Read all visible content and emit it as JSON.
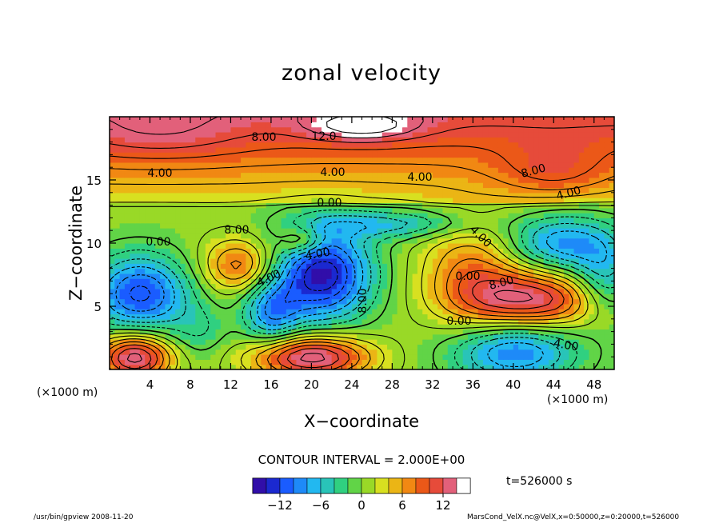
{
  "title": "zonal velocity",
  "xlabel": "X−coordinate",
  "ylabel": "Z−coordinate",
  "x_unit_left": "(×1000 m)",
  "x_unit_right": "(×1000 m)",
  "contour_interval": "CONTOUR INTERVAL = 2.000E+00",
  "time_info": "t=526000 s",
  "footer_left": "/usr/bin/gpview  2008-11-20",
  "footer_right": "MarsCond_VelX.nc@VelX,x=0:50000,z=0:20000,t=526000",
  "chart_data": {
    "type": "heatmap",
    "title": "zonal velocity",
    "xlabel": "X−coordinate",
    "ylabel": "Z−coordinate",
    "xlim": [
      0,
      50
    ],
    "ylim": [
      0,
      20
    ],
    "x_ticks": [
      4,
      8,
      12,
      16,
      20,
      24,
      28,
      32,
      36,
      40,
      44,
      48
    ],
    "y_ticks": [
      5,
      10,
      15
    ],
    "colorbar": {
      "range": [
        -16,
        16
      ],
      "ticks": [
        -12,
        -6,
        0,
        6,
        12
      ],
      "interval": 2.0
    },
    "contour_labels": [
      "8.00",
      "12.0",
      "4.00",
      "4.00",
      "4.00",
      "8.00",
      "4.00",
      "0.00",
      "8.00",
      "0.00",
      "4.00",
      "4.00",
      "4.00",
      "8.00",
      "0.00",
      "8.00",
      "0.00",
      "4.00"
    ],
    "features": [
      {
        "x": 3,
        "z": 6,
        "value": -10
      },
      {
        "x": 21,
        "z": 7.5,
        "value": -14
      },
      {
        "x": 16,
        "z": 5,
        "value": -10
      },
      {
        "x": 42,
        "z": 5.5,
        "value": 12
      },
      {
        "x": 13,
        "z": 8.5,
        "value": 8
      },
      {
        "x": 38,
        "z": 7.5,
        "value": 8
      },
      {
        "x": 25,
        "z": 19,
        "value": 16
      },
      {
        "x": 2,
        "z": 1,
        "value": 16
      },
      {
        "x": 20,
        "z": 1,
        "value": 16
      },
      {
        "x": 30,
        "z": 14,
        "value": 4
      },
      {
        "x": 26,
        "z": 12,
        "value": -2
      }
    ]
  }
}
